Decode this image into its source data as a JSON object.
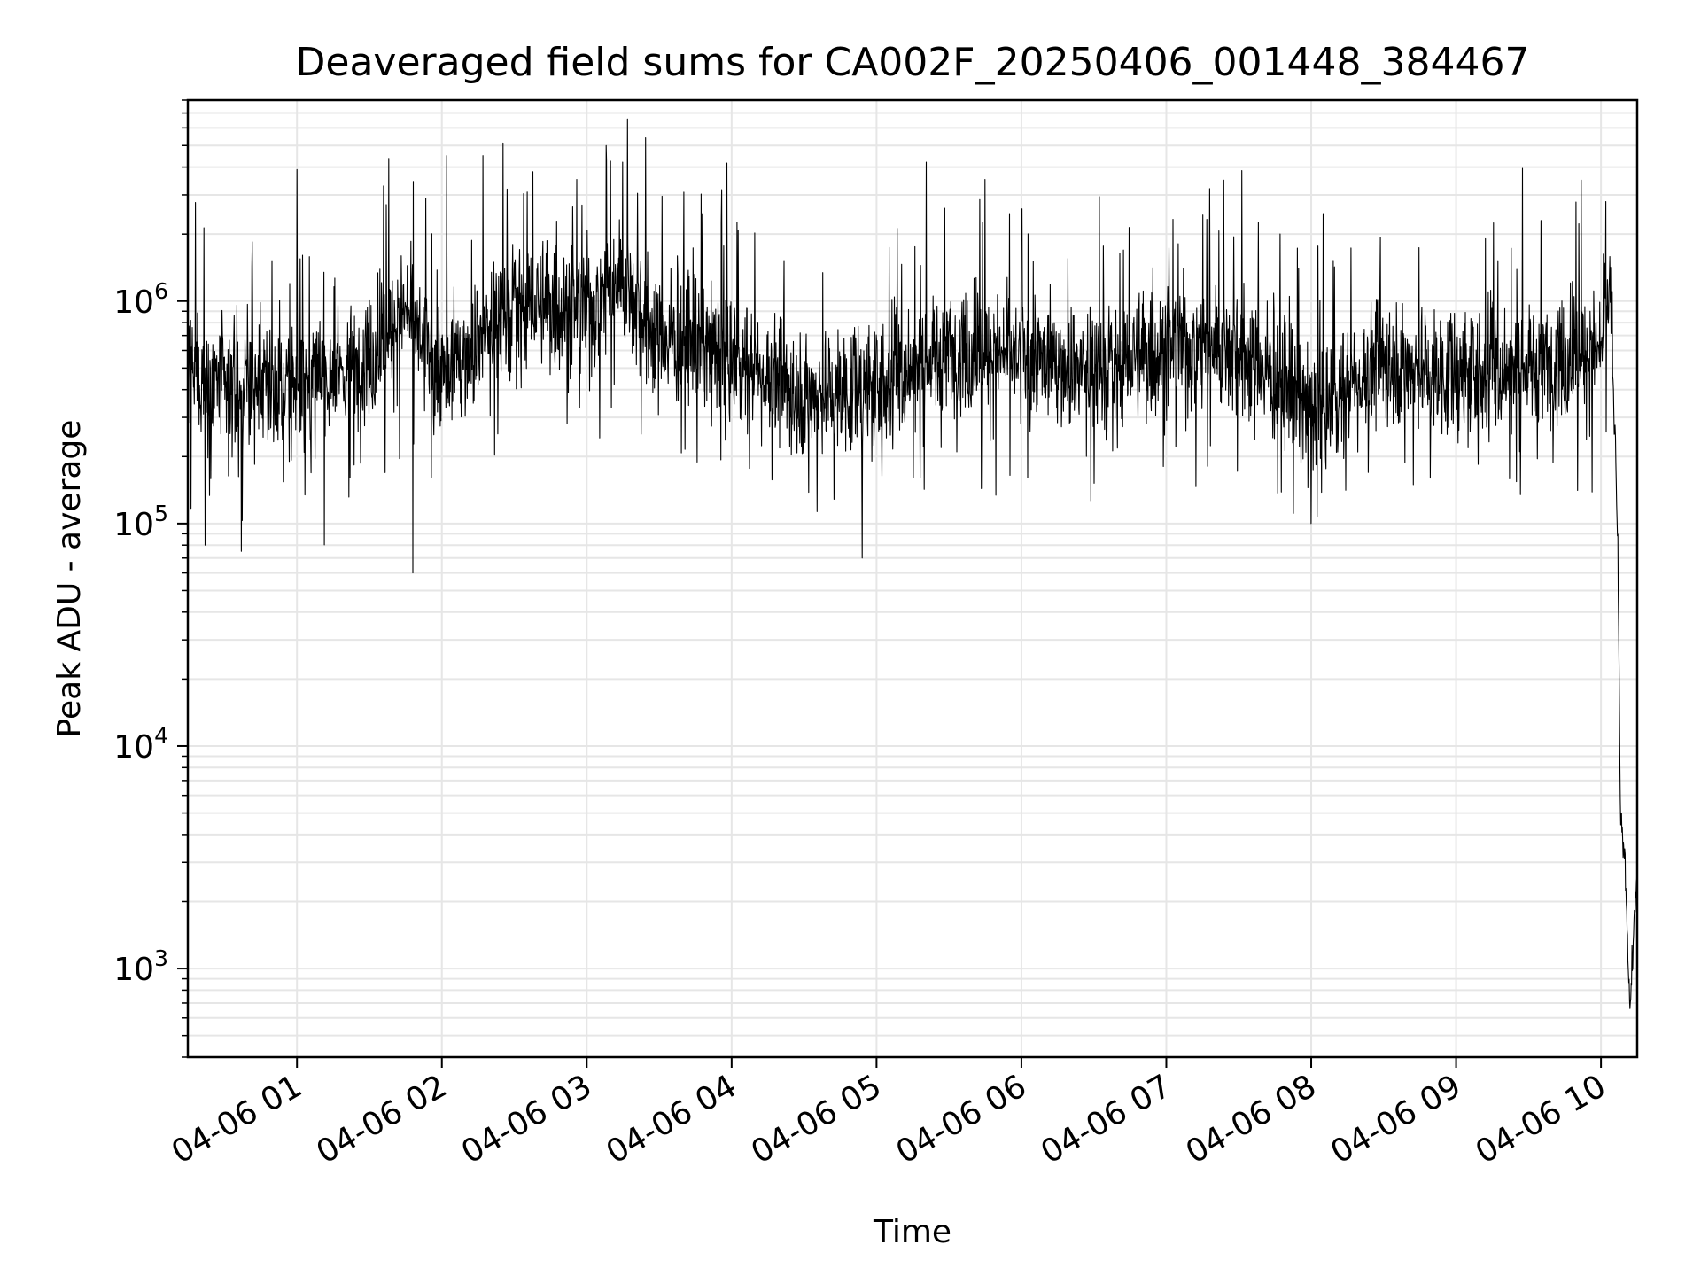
{
  "chart_data": {
    "type": "line",
    "title": "Deaveraged field sums for CA002F_20250406_001448_384467",
    "xlabel": "Time",
    "ylabel": "Peak ADU - average",
    "y_scale": "log",
    "ylim": [
      400,
      8000000
    ],
    "xlim": [
      "2025-04-06 00:14:48",
      "2025-04-06 10:15:00"
    ],
    "grid": true,
    "line_color": "#000000",
    "grid_color": "#e6e6e6",
    "x_ticks": [
      {
        "t": "2025-04-06 01:00",
        "label": "04-06 01"
      },
      {
        "t": "2025-04-06 02:00",
        "label": "04-06 02"
      },
      {
        "t": "2025-04-06 03:00",
        "label": "04-06 03"
      },
      {
        "t": "2025-04-06 04:00",
        "label": "04-06 04"
      },
      {
        "t": "2025-04-06 05:00",
        "label": "04-06 05"
      },
      {
        "t": "2025-04-06 06:00",
        "label": "04-06 06"
      },
      {
        "t": "2025-04-06 07:00",
        "label": "04-06 07"
      },
      {
        "t": "2025-04-06 08:00",
        "label": "04-06 08"
      },
      {
        "t": "2025-04-06 09:00",
        "label": "04-06 09"
      },
      {
        "t": "2025-04-06 10:00",
        "label": "04-06 10"
      }
    ],
    "y_ticks": [
      {
        "value": 1000,
        "base": "10",
        "exp": "3"
      },
      {
        "value": 10000,
        "base": "10",
        "exp": "4"
      },
      {
        "value": 100000,
        "base": "10",
        "exp": "5"
      },
      {
        "value": 1000000,
        "base": "10",
        "exp": "6"
      }
    ],
    "series_description_points": [
      {
        "t": "2025-04-06 00:15",
        "y": 500000
      },
      {
        "t": "2025-04-06 00:30",
        "y": 400000
      },
      {
        "t": "2025-04-06 01:00",
        "y": 400000
      },
      {
        "t": "2025-04-06 01:30",
        "y": 550000
      },
      {
        "t": "2025-04-06 01:45",
        "y": 900000
      },
      {
        "t": "2025-04-06 02:00",
        "y": 450000
      },
      {
        "t": "2025-04-06 02:30",
        "y": 1000000
      },
      {
        "t": "2025-04-06 03:00",
        "y": 900000
      },
      {
        "t": "2025-04-06 03:15",
        "y": 1300000
      },
      {
        "t": "2025-04-06 03:30",
        "y": 700000
      },
      {
        "t": "2025-04-06 04:00",
        "y": 550000
      },
      {
        "t": "2025-04-06 04:30",
        "y": 380000
      },
      {
        "t": "2025-04-06 05:00",
        "y": 400000
      },
      {
        "t": "2025-04-06 05:30",
        "y": 600000
      },
      {
        "t": "2025-04-06 06:00",
        "y": 550000
      },
      {
        "t": "2025-04-06 06:30",
        "y": 500000
      },
      {
        "t": "2025-04-06 07:00",
        "y": 600000
      },
      {
        "t": "2025-04-06 07:30",
        "y": 650000
      },
      {
        "t": "2025-04-06 08:00",
        "y": 300000
      },
      {
        "t": "2025-04-06 08:30",
        "y": 550000
      },
      {
        "t": "2025-04-06 09:00",
        "y": 450000
      },
      {
        "t": "2025-04-06 09:30",
        "y": 500000
      },
      {
        "t": "2025-04-06 10:00",
        "y": 600000
      },
      {
        "t": "2025-04-06 10:04",
        "y": 1200000
      },
      {
        "t": "2025-04-06 10:07",
        "y": 80000
      },
      {
        "t": "2025-04-06 10:08",
        "y": 5000
      },
      {
        "t": "2025-04-06 10:10",
        "y": 3000
      },
      {
        "t": "2025-04-06 10:12",
        "y": 650
      },
      {
        "t": "2025-04-06 10:15",
        "y": 3000
      }
    ],
    "spikes": [
      {
        "t": "2025-04-06 00:22",
        "y": 80000
      },
      {
        "t": "2025-04-06 00:37",
        "y": 75000
      },
      {
        "t": "2025-04-06 01:00",
        "y": 3900000
      },
      {
        "t": "2025-04-06 01:48",
        "y": 60000
      },
      {
        "t": "2025-04-06 02:02",
        "y": 4500000
      },
      {
        "t": "2025-04-06 02:17",
        "y": 4500000
      },
      {
        "t": "2025-04-06 03:08",
        "y": 5000000
      },
      {
        "t": "2025-04-06 04:54",
        "y": 70000
      },
      {
        "t": "2025-04-06 06:00",
        "y": 2500000
      },
      {
        "t": "2025-04-06 07:18",
        "y": 3200000
      },
      {
        "t": "2025-04-06 08:00",
        "y": 100000
      },
      {
        "t": "2025-04-06 10:02",
        "y": 2800000
      }
    ]
  }
}
